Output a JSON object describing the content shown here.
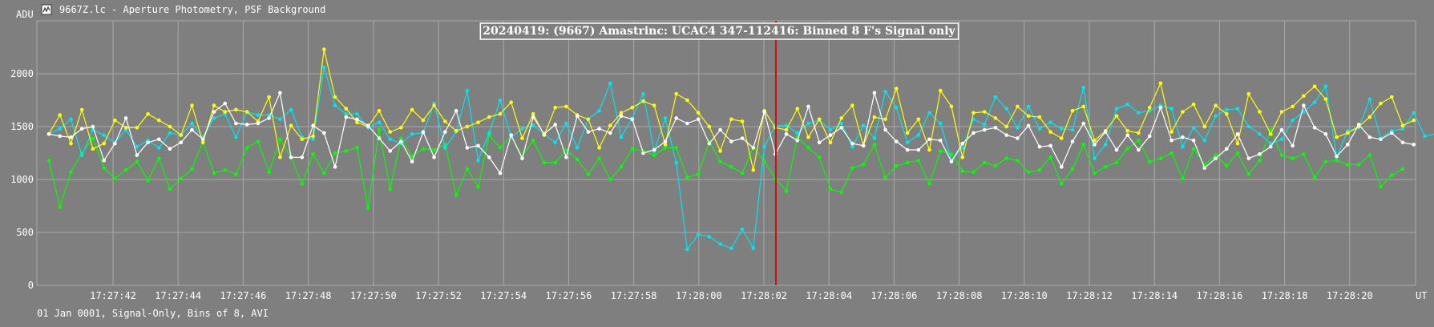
{
  "window": {
    "title": "9667Z.lc - Aperture Photometry, PSF Background",
    "icon": "document-icon"
  },
  "footer": {
    "status": "01 Jan 0001, Signal-Only, Bins of 8, AVI"
  },
  "colors": {
    "background": "#7f7f7f",
    "grid": "#a9a9a9",
    "axis_text": "#ffffff",
    "marker_line": "#d01010",
    "title_box_bg": "#7f7f7f"
  },
  "chart_data": {
    "type": "line",
    "title": "20240419: (9667) Amastrinc: UCAC4 347-112416: Binned 8 F's Signal only",
    "ylabel": "ADU",
    "xlabel": "UT",
    "ylim": [
      0,
      2500
    ],
    "yticks": [
      0,
      500,
      1000,
      1500,
      2000
    ],
    "x_tick_labels": [
      "17:27:42",
      "17:27:44",
      "17:27:46",
      "17:27:48",
      "17:27:50",
      "17:27:52",
      "17:27:54",
      "17:27:56",
      "17:27:58",
      "17:28:00",
      "17:28:02",
      "17:28:04",
      "17:28:06",
      "17:28:08",
      "17:28:10",
      "17:28:12",
      "17:28:14",
      "17:28:16",
      "17:28:18",
      "17:28:20"
    ],
    "grid": true,
    "event_marker_time": "17:28:02",
    "series": [
      {
        "color": "#00ff00",
        "values": [
          1180,
          740,
          1070,
          1250,
          1390,
          1110,
          1010,
          1090,
          1170,
          990,
          1200,
          910,
          1010,
          1100,
          1360,
          1060,
          1090,
          1050,
          1300,
          1360,
          1070,
          1380,
          1210,
          960,
          1240,
          1060,
          1250,
          1270,
          1300,
          730,
          1470,
          910,
          1390,
          1220,
          1290,
          1280,
          1330,
          850,
          1100,
          930,
          1420,
          1300,
          1410,
          1220,
          1370,
          1160,
          1160,
          1280,
          1190,
          1050,
          1200,
          1000,
          1120,
          1290,
          1270,
          1230,
          1300,
          1300,
          1020,
          1050,
          1360,
          1170,
          1120,
          1060,
          1310,
          1170,
          1010,
          890,
          1400,
          1300,
          1210,
          910,
          880,
          1110,
          1140,
          1330,
          1020,
          1130,
          1160,
          1180,
          960,
          1270,
          1240,
          1080,
          1070,
          1160,
          1130,
          1200,
          1180,
          1070,
          1090,
          1210,
          960,
          1100,
          1330,
          1060,
          1120,
          1160,
          1290,
          1370,
          1170,
          1200,
          1250,
          1010,
          1290,
          1140,
          1230,
          1130,
          1250,
          1050,
          1180,
          1470,
          1230,
          1200,
          1240,
          1020,
          1170,
          1180,
          1140,
          1140,
          1230,
          930,
          1040,
          1100
        ]
      },
      {
        "color": "#00e5ee",
        "values": [
          1430,
          1480,
          1570,
          1230,
          1470,
          1420,
          1350,
          1470,
          1310,
          1370,
          1300,
          1440,
          1420,
          1530,
          1400,
          1580,
          1620,
          1400,
          1640,
          1610,
          1610,
          1570,
          1660,
          1400,
          1380,
          2060,
          1700,
          1620,
          1620,
          1490,
          1540,
          1380,
          1340,
          1430,
          1440,
          1720,
          1300,
          1450,
          1840,
          1180,
          1440,
          1750,
          1400,
          1480,
          1510,
          1430,
          1350,
          1530,
          1300,
          1570,
          1650,
          1910,
          1400,
          1580,
          1810,
          1270,
          1580,
          1160,
          340,
          480,
          460,
          390,
          350,
          530,
          350,
          1310,
          1510,
          1510,
          1440,
          1530,
          1560,
          1470,
          1530,
          1310,
          1510,
          1390,
          1830,
          1680,
          1350,
          1420,
          1630,
          1530,
          1180,
          1300,
          1570,
          1520,
          1780,
          1670,
          1490,
          1690,
          1480,
          1540,
          1480,
          1470,
          1870,
          1200,
          1330,
          1670,
          1710,
          1630,
          1650,
          1700,
          1670,
          1310,
          1490,
          1370,
          1600,
          1660,
          1670,
          1500,
          1430,
          1340,
          1380,
          1560,
          1640,
          1730,
          1880,
          1210,
          1460,
          1490,
          1760,
          1390,
          1460,
          1480,
          1630,
          1410,
          1430
        ]
      },
      {
        "color": "#ffff00",
        "values": [
          1430,
          1610,
          1340,
          1660,
          1290,
          1340,
          1560,
          1490,
          1490,
          1620,
          1560,
          1500,
          1420,
          1700,
          1350,
          1700,
          1640,
          1660,
          1640,
          1550,
          1780,
          1210,
          1510,
          1380,
          1410,
          2230,
          1780,
          1670,
          1540,
          1500,
          1650,
          1450,
          1490,
          1660,
          1560,
          1700,
          1550,
          1460,
          1500,
          1540,
          1590,
          1620,
          1730,
          1390,
          1620,
          1420,
          1680,
          1690,
          1610,
          1570,
          1300,
          1510,
          1630,
          1680,
          1740,
          1700,
          1330,
          1810,
          1750,
          1630,
          1500,
          1270,
          1570,
          1550,
          1090,
          1650,
          1490,
          1470,
          1670,
          1400,
          1570,
          1350,
          1580,
          1700,
          1320,
          1590,
          1570,
          1860,
          1440,
          1570,
          1280,
          1840,
          1690,
          1210,
          1630,
          1640,
          1580,
          1500,
          1690,
          1600,
          1590,
          1450,
          1390,
          1650,
          1690,
          1370,
          1460,
          1600,
          1460,
          1440,
          1680,
          1910,
          1450,
          1640,
          1710,
          1500,
          1700,
          1620,
          1340,
          1810,
          1640,
          1430,
          1640,
          1690,
          1790,
          1880,
          1760,
          1400,
          1440,
          1500,
          1590,
          1720,
          1780,
          1510,
          1560
        ]
      },
      {
        "color": "#ffffff",
        "values": [
          1430,
          1410,
          1400,
          1480,
          1500,
          1180,
          1340,
          1580,
          1230,
          1350,
          1380,
          1290,
          1350,
          1470,
          1380,
          1640,
          1720,
          1530,
          1520,
          1530,
          1580,
          1820,
          1210,
          1210,
          1510,
          1440,
          1120,
          1590,
          1570,
          1510,
          1390,
          1270,
          1360,
          1170,
          1450,
          1210,
          1450,
          1650,
          1300,
          1320,
          1210,
          1060,
          1420,
          1200,
          1590,
          1430,
          1520,
          1210,
          1600,
          1450,
          1480,
          1440,
          1600,
          1570,
          1250,
          1280,
          1360,
          1580,
          1530,
          1570,
          1340,
          1470,
          1360,
          1390,
          1300,
          1640,
          1240,
          1430,
          1370,
          1690,
          1350,
          1420,
          1490,
          1340,
          1320,
          1820,
          1470,
          1360,
          1280,
          1280,
          1380,
          1370,
          1170,
          1340,
          1440,
          1470,
          1490,
          1420,
          1390,
          1510,
          1310,
          1320,
          1120,
          1360,
          1530,
          1330,
          1450,
          1280,
          1420,
          1280,
          1410,
          1680,
          1370,
          1400,
          1370,
          1110,
          1200,
          1290,
          1430,
          1200,
          1240,
          1310,
          1470,
          1320,
          1700,
          1490,
          1430,
          1220,
          1330,
          1520,
          1400,
          1380,
          1440,
          1350,
          1330
        ]
      }
    ]
  }
}
